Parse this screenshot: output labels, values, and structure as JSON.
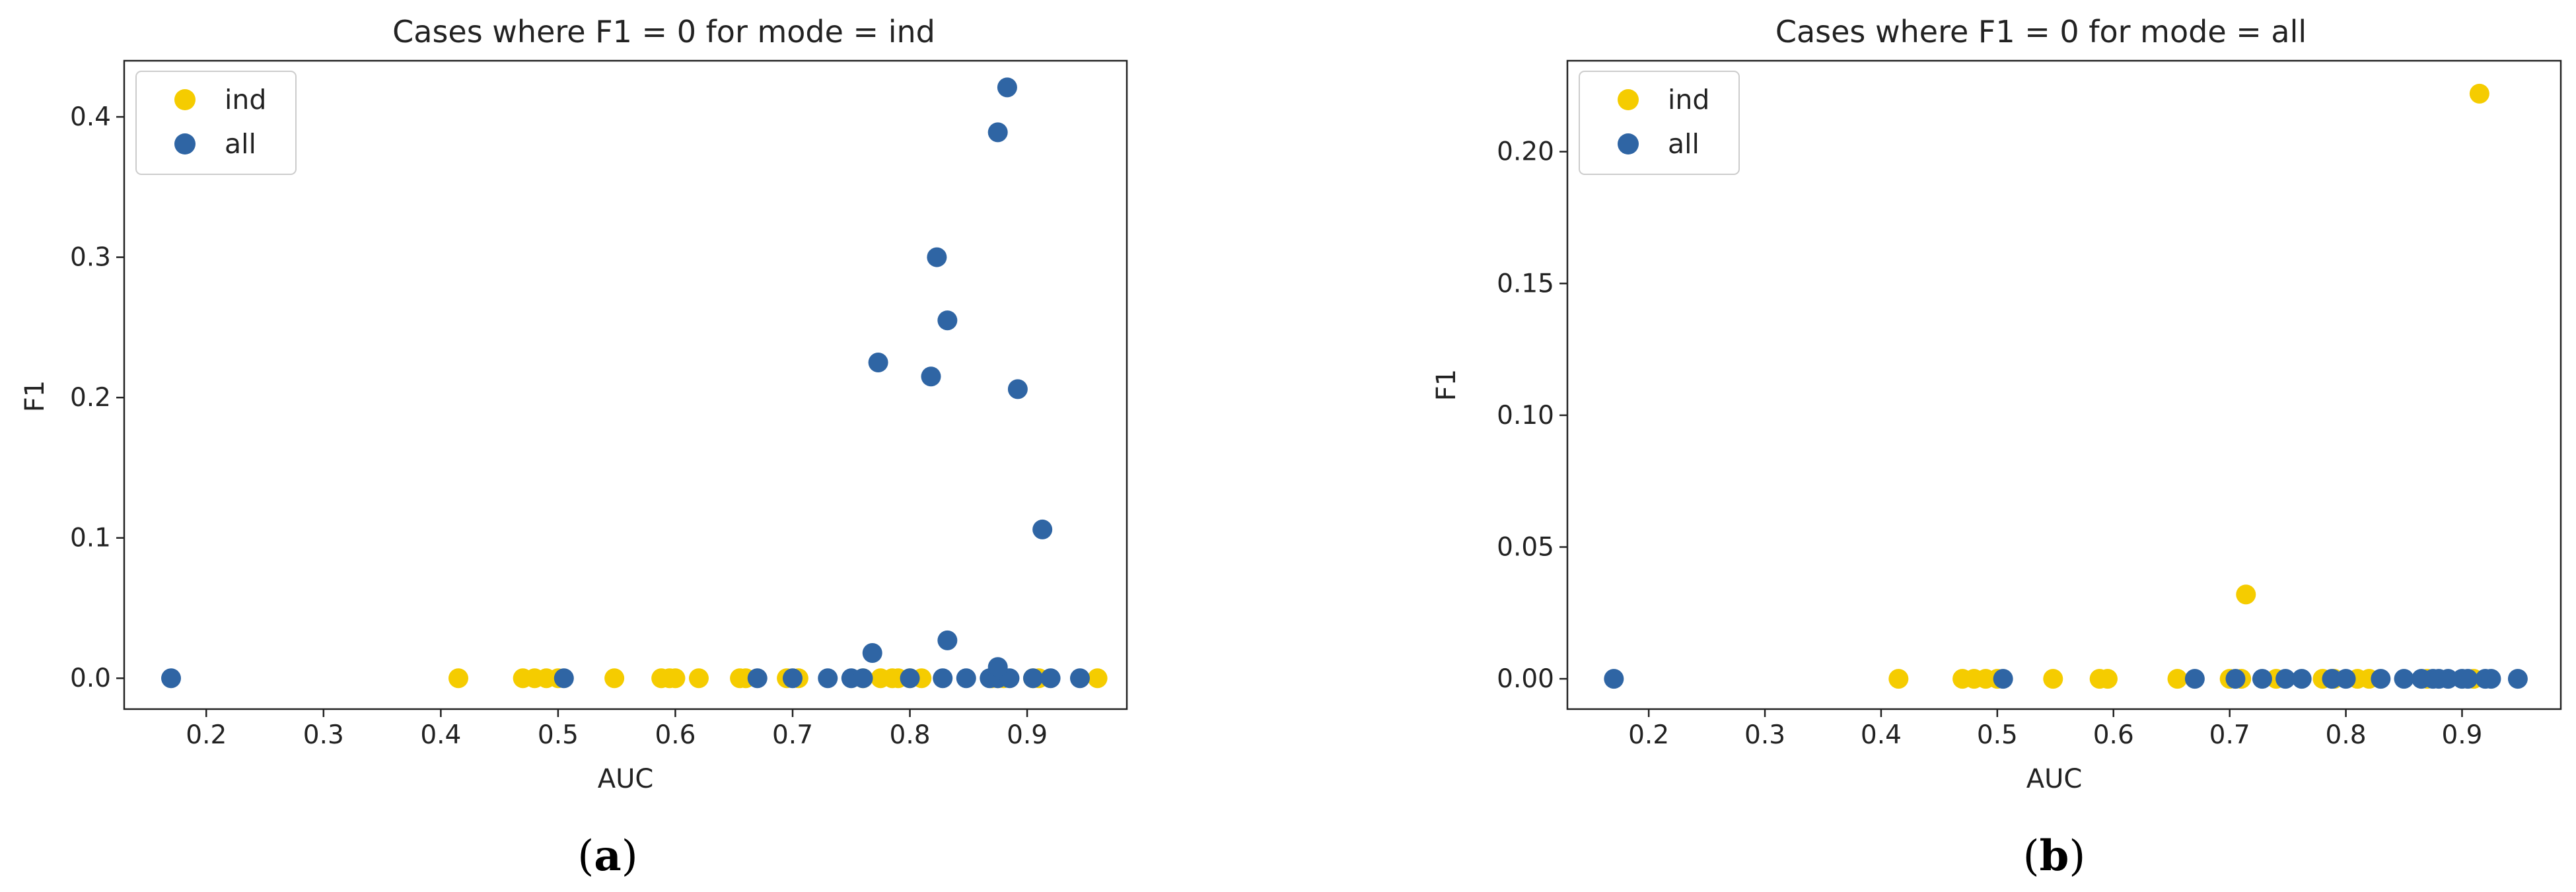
{
  "colors": {
    "ind": "#f5cc00",
    "all": "#2f65a4"
  },
  "chart_data": [
    {
      "type": "scatter",
      "title": "Cases where F1 = 0 for mode = ind",
      "xlabel": "AUC",
      "ylabel": "F1",
      "caption_open": "(",
      "caption_letter": "a",
      "caption_close": ")",
      "legend_position": "upper-left",
      "grid": false,
      "xlim": [
        0.13,
        0.985
      ],
      "ylim": [
        -0.022,
        0.44
      ],
      "xticks": [
        0.2,
        0.3,
        0.4,
        0.5,
        0.6,
        0.7,
        0.8,
        0.9
      ],
      "xtick_labels": [
        "0.2",
        "0.3",
        "0.4",
        "0.5",
        "0.6",
        "0.7",
        "0.8",
        "0.9"
      ],
      "yticks": [
        0.0,
        0.1,
        0.2,
        0.3,
        0.4
      ],
      "ytick_labels": [
        "0.0",
        "0.1",
        "0.2",
        "0.3",
        "0.4"
      ],
      "series": [
        {
          "name": "ind",
          "points": [
            [
              0.415,
              0
            ],
            [
              0.47,
              0
            ],
            [
              0.48,
              0
            ],
            [
              0.49,
              0
            ],
            [
              0.5,
              0
            ],
            [
              0.548,
              0
            ],
            [
              0.588,
              0
            ],
            [
              0.595,
              0
            ],
            [
              0.6,
              0
            ],
            [
              0.62,
              0
            ],
            [
              0.655,
              0
            ],
            [
              0.66,
              0
            ],
            [
              0.695,
              0
            ],
            [
              0.705,
              0
            ],
            [
              0.76,
              0
            ],
            [
              0.775,
              0
            ],
            [
              0.785,
              0
            ],
            [
              0.79,
              0
            ],
            [
              0.8,
              0
            ],
            [
              0.81,
              0
            ],
            [
              0.87,
              0
            ],
            [
              0.875,
              0
            ],
            [
              0.88,
              0
            ],
            [
              0.905,
              0
            ],
            [
              0.91,
              0
            ],
            [
              0.96,
              0
            ]
          ]
        },
        {
          "name": "all",
          "points": [
            [
              0.17,
              0
            ],
            [
              0.505,
              0
            ],
            [
              0.67,
              0
            ],
            [
              0.7,
              0
            ],
            [
              0.73,
              0
            ],
            [
              0.75,
              0
            ],
            [
              0.76,
              0
            ],
            [
              0.8,
              0
            ],
            [
              0.828,
              0
            ],
            [
              0.848,
              0
            ],
            [
              0.868,
              0
            ],
            [
              0.875,
              0
            ],
            [
              0.885,
              0
            ],
            [
              0.905,
              0
            ],
            [
              0.92,
              0
            ],
            [
              0.945,
              0
            ],
            [
              0.768,
              0.018
            ],
            [
              0.832,
              0.027
            ],
            [
              0.875,
              0.008
            ],
            [
              0.773,
              0.225
            ],
            [
              0.818,
              0.215
            ],
            [
              0.823,
              0.3
            ],
            [
              0.832,
              0.255
            ],
            [
              0.875,
              0.389
            ],
            [
              0.883,
              0.421
            ],
            [
              0.892,
              0.206
            ],
            [
              0.913,
              0.106
            ]
          ]
        }
      ]
    },
    {
      "type": "scatter",
      "title": "Cases where F1 = 0 for mode = all",
      "xlabel": "AUC",
      "ylabel": "F1",
      "caption_open": "(",
      "caption_letter": "b",
      "caption_close": ")",
      "legend_position": "upper-left",
      "grid": false,
      "xlim": [
        0.13,
        0.985
      ],
      "ylim": [
        -0.0115,
        0.2345
      ],
      "xticks": [
        0.2,
        0.3,
        0.4,
        0.5,
        0.6,
        0.7,
        0.8,
        0.9
      ],
      "xtick_labels": [
        "0.2",
        "0.3",
        "0.4",
        "0.5",
        "0.6",
        "0.7",
        "0.8",
        "0.9"
      ],
      "yticks": [
        0.0,
        0.05,
        0.1,
        0.15,
        0.2
      ],
      "ytick_labels": [
        "0.00",
        "0.05",
        "0.10",
        "0.15",
        "0.20"
      ],
      "series": [
        {
          "name": "ind",
          "points": [
            [
              0.415,
              0
            ],
            [
              0.47,
              0
            ],
            [
              0.48,
              0
            ],
            [
              0.49,
              0
            ],
            [
              0.5,
              0
            ],
            [
              0.548,
              0
            ],
            [
              0.588,
              0
            ],
            [
              0.595,
              0
            ],
            [
              0.655,
              0
            ],
            [
              0.7,
              0
            ],
            [
              0.71,
              0
            ],
            [
              0.74,
              0
            ],
            [
              0.78,
              0
            ],
            [
              0.79,
              0
            ],
            [
              0.81,
              0
            ],
            [
              0.82,
              0
            ],
            [
              0.87,
              0
            ],
            [
              0.91,
              0
            ],
            [
              0.714,
              0.032
            ],
            [
              0.915,
              0.222
            ]
          ]
        },
        {
          "name": "all",
          "points": [
            [
              0.17,
              0
            ],
            [
              0.505,
              0
            ],
            [
              0.67,
              0
            ],
            [
              0.705,
              0
            ],
            [
              0.728,
              0
            ],
            [
              0.748,
              0
            ],
            [
              0.762,
              0
            ],
            [
              0.788,
              0
            ],
            [
              0.8,
              0
            ],
            [
              0.83,
              0
            ],
            [
              0.85,
              0
            ],
            [
              0.865,
              0
            ],
            [
              0.875,
              0
            ],
            [
              0.88,
              0
            ],
            [
              0.888,
              0
            ],
            [
              0.9,
              0
            ],
            [
              0.905,
              0
            ],
            [
              0.92,
              0
            ],
            [
              0.925,
              0
            ],
            [
              0.948,
              0
            ]
          ]
        }
      ]
    }
  ]
}
